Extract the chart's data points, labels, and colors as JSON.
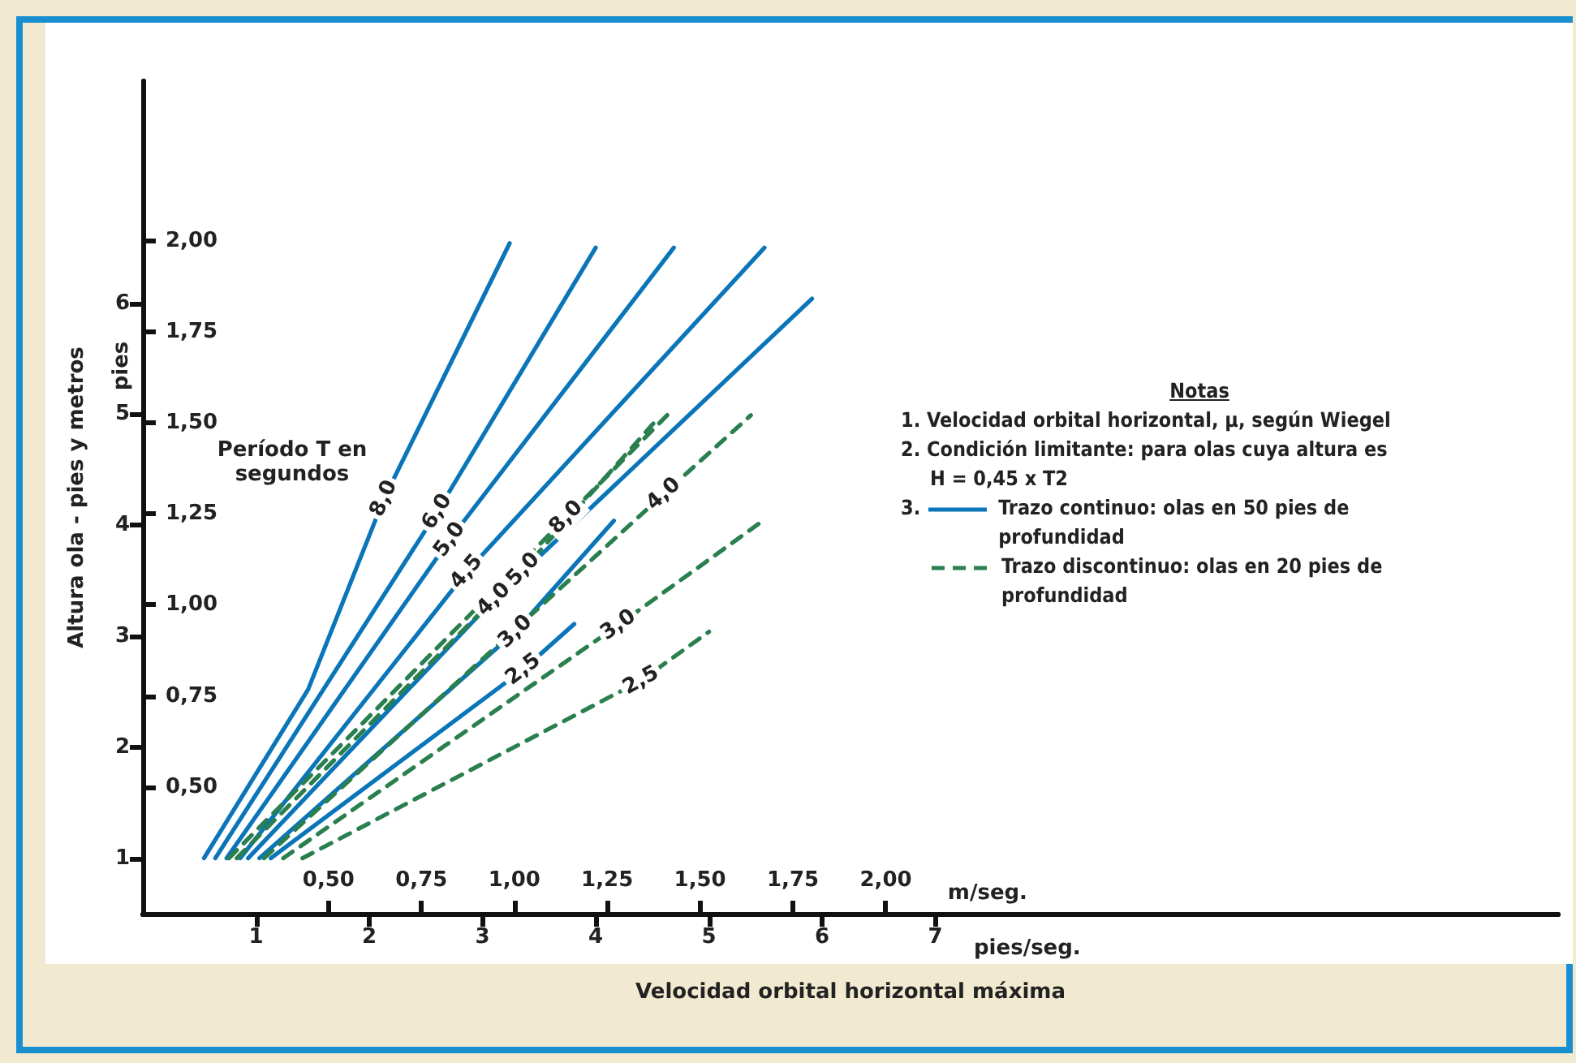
{
  "chart_data": {
    "type": "line",
    "xlabel": "Velocidad orbital horizontal máxima",
    "x2label": "m/seg.",
    "ylabel": "Altura ola - pies y metros",
    "xlim": [
      0,
      12.5
    ],
    "xticks": [
      1,
      2,
      3,
      4,
      5,
      6,
      7
    ],
    "x2lim": [
      0,
      3.81
    ],
    "x2ticks": [
      {
        "value": 0.5,
        "label": "0,50"
      },
      {
        "value": 0.75,
        "label": "0,75"
      },
      {
        "value": 1,
        "label": "1,00"
      },
      {
        "value": 1.25,
        "label": "1,25"
      },
      {
        "value": 1.5,
        "label": "1,50"
      },
      {
        "value": 1.75,
        "label": "1,75"
      },
      {
        "value": 2,
        "label": "2,00"
      }
    ],
    "ylim": [
      0.5,
      8
    ],
    "yticks": [
      1,
      2,
      3,
      4,
      5,
      6
    ],
    "y2lim": [
      0.152,
      2.438
    ],
    "y2ticks": [
      {
        "value": 0.5,
        "label": "0,50"
      },
      {
        "value": 0.75,
        "label": "0,75"
      },
      {
        "value": 1,
        "label": "1,00"
      },
      {
        "value": 1.25,
        "label": "1,25"
      },
      {
        "value": 1.5,
        "label": "1,50"
      },
      {
        "value": 1.75,
        "label": "1,75"
      },
      {
        "value": 2,
        "label": "2,00"
      }
    ],
    "grid": false,
    "legend": false,
    "marker": "none",
    "series": [
      {
        "name": "8,0",
        "color": "#0a75b8",
        "line_style": "solid",
        "x": [
          0.54,
          1.46,
          2.13,
          3.24
        ],
        "values": [
          1,
          2.52,
          4.24,
          6.54
        ]
      },
      {
        "name": "6,0",
        "color": "#0a75b8",
        "line_style": "solid",
        "x": [
          0.64,
          2.6,
          4.0
        ],
        "values": [
          1,
          4.12,
          6.5
        ]
      },
      {
        "name": "5,0",
        "color": "#0a75b8",
        "line_style": "solid",
        "x": [
          0.74,
          2.71,
          4.69
        ],
        "values": [
          1,
          3.87,
          6.5
        ]
      },
      {
        "name": "4,5",
        "color": "#0a75b8",
        "line_style": "solid",
        "x": [
          0.86,
          2.86,
          5.49
        ],
        "values": [
          1,
          3.58,
          6.5
        ]
      },
      {
        "name": "4,0",
        "color": "#0a75b8",
        "line_style": "solid",
        "x": [
          0.93,
          3.1,
          5.91
        ],
        "values": [
          1,
          3.33,
          6.04
        ]
      },
      {
        "name": "3,0",
        "color": "#0a75b8",
        "line_style": "solid",
        "x": [
          1.03,
          3.29,
          4.16
        ],
        "values": [
          1,
          3.04,
          4.04
        ]
      },
      {
        "name": "2,5",
        "color": "#0a75b8",
        "line_style": "solid",
        "x": [
          1.13,
          3.36,
          3.81
        ],
        "values": [
          1,
          2.7,
          3.11
        ]
      },
      {
        "name": "8,0",
        "color": "#2a7f4f",
        "line_style": "dashed",
        "x": [
          0.76,
          3.74,
          4.64
        ],
        "values": [
          1,
          4.07,
          5.0
        ]
      },
      {
        "name": "5,0",
        "color": "#2a7f4f",
        "line_style": "dashed",
        "x": [
          0.83,
          3.36,
          4.53
        ],
        "values": [
          1,
          3.6,
          4.94
        ]
      },
      {
        "name": "4,0",
        "color": "#2a7f4f",
        "line_style": "dashed",
        "x": [
          1.07,
          4.6,
          5.37
        ],
        "values": [
          1,
          4.28,
          4.99
        ]
      },
      {
        "name": "3,0",
        "color": "#2a7f4f",
        "line_style": "dashed",
        "x": [
          1.24,
          4.2,
          5.49
        ],
        "values": [
          1,
          3.1,
          4.05
        ]
      },
      {
        "name": "2,5",
        "color": "#2a7f4f",
        "line_style": "dashed",
        "x": [
          1.41,
          4.4,
          5.0
        ],
        "values": [
          1,
          2.6,
          3.04
        ]
      }
    ],
    "annotations": [
      "pies",
      "pies/seg.",
      "Período T en segundos",
      "Notas",
      "1. Velocidad orbital horizontal, μ, según Wiegel",
      "2. Condición limitante: para olas cuya altura es H = 0,45 x T2",
      "3. Trazo continuo: olas en 50 pies de profundidad",
      "Trazo discontinuo: olas en 20 pies de profundidad"
    ]
  }
}
